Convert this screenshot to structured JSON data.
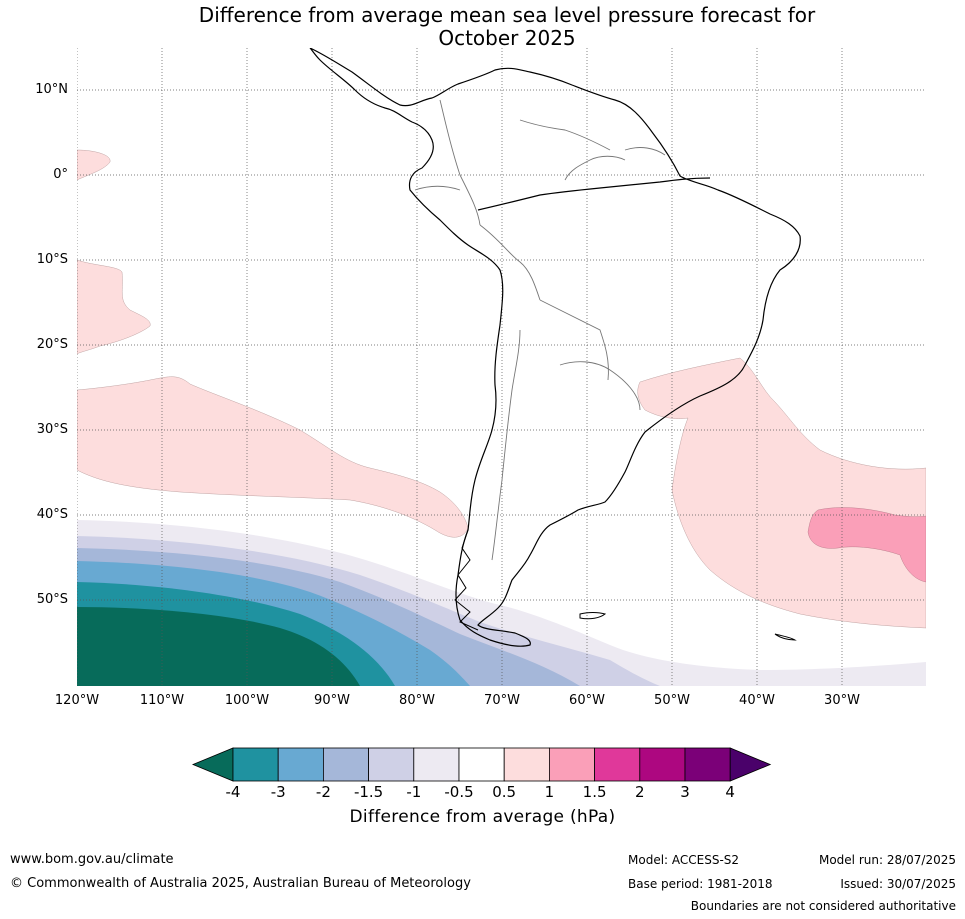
{
  "title_line1": "Difference from average mean sea level pressure forecast for",
  "title_line2": "October 2025",
  "lat_labels": [
    "10°N",
    "0°",
    "10°S",
    "20°S",
    "30°S",
    "40°S",
    "50°S"
  ],
  "lon_labels": [
    "120°W",
    "110°W",
    "100°W",
    "90°W",
    "80°W",
    "70°W",
    "60°W",
    "50°W",
    "40°W",
    "30°W"
  ],
  "legend": {
    "title": "Difference from average (hPa)",
    "ticks": [
      "-4",
      "-3",
      "-2",
      "-1.5",
      "-1",
      "-0.5",
      "0.5",
      "1",
      "1.5",
      "2",
      "3",
      "4"
    ],
    "bins": [
      {
        "range": "< -4",
        "color": "#076b5a"
      },
      {
        "range": "-4 to -3",
        "color": "#1f92a0"
      },
      {
        "range": "-3 to -2",
        "color": "#68a9d2"
      },
      {
        "range": "-2 to -1.5",
        "color": "#a5b7d9"
      },
      {
        "range": "-1.5 to -1",
        "color": "#cfd0e6"
      },
      {
        "range": "-1 to -0.5",
        "color": "#edeaf2"
      },
      {
        "range": "-0.5 to 0.5",
        "color": "#ffffff"
      },
      {
        "range": "0.5 to 1",
        "color": "#fddddd"
      },
      {
        "range": "1 to 1.5",
        "color": "#fa9fb8"
      },
      {
        "range": "1.5 to 2",
        "color": "#e0389a"
      },
      {
        "range": "2 to 3",
        "color": "#ad0780"
      },
      {
        "range": "3 to 4",
        "color": "#7b0078"
      },
      {
        "range": "> 4",
        "color": "#4a016a"
      }
    ]
  },
  "footer": {
    "website": "www.bom.gov.au/climate",
    "copyright": "© Commonwealth of Australia 2025, Australian Bureau of Meteorology",
    "model": "Model: ACCESS-S2",
    "base_period": "Base period: 1981-2018",
    "model_run": "Model run: 28/07/2025",
    "issued": "Issued: 30/07/2025",
    "disclaimer": "Boundaries are not considered authoritative"
  }
}
